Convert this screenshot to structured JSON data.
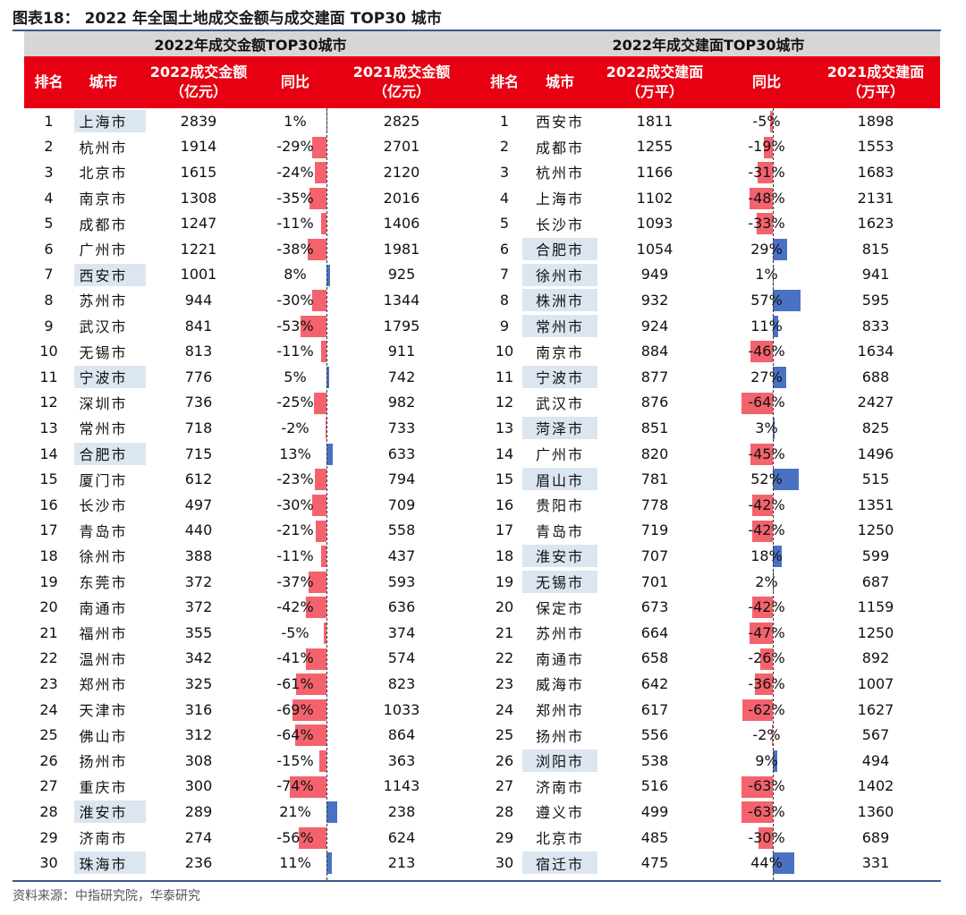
{
  "title": "图表18：  2022 年全国土地成交金额与成交建面 TOP30 城市",
  "left_header": "2022年成交金额TOP30城市",
  "right_header": "2022年成交建面TOP30城市",
  "left_columns": [
    "排名",
    "城市",
    "2022成交金额\n（亿元）",
    "同比",
    "2021成交金额\n（亿元）"
  ],
  "right_columns": [
    "排名",
    "城市",
    "2022成交建面\n（万平）",
    "同比",
    "2021成交建面\n（万平）"
  ],
  "source": "资料来源：中指研究院，华泰研究",
  "colors": {
    "header_red": "#e60012",
    "neg_bar": "#f4636d",
    "pos_bar": "#4a72c4",
    "city_highlight": "#dce6f1",
    "group_header_gray": "#d6d6d6"
  },
  "left_table": [
    {
      "rank": "1",
      "city": "上海市",
      "v2022": "2839",
      "yoy": "1%",
      "yoy_value": 1,
      "v2021": "2825",
      "highlight": true
    },
    {
      "rank": "2",
      "city": "杭州市",
      "v2022": "1914",
      "yoy": "-29%",
      "yoy_value": -29,
      "v2021": "2701",
      "highlight": false
    },
    {
      "rank": "3",
      "city": "北京市",
      "v2022": "1615",
      "yoy": "-24%",
      "yoy_value": -24,
      "v2021": "2120",
      "highlight": false
    },
    {
      "rank": "4",
      "city": "南京市",
      "v2022": "1308",
      "yoy": "-35%",
      "yoy_value": -35,
      "v2021": "2016",
      "highlight": false
    },
    {
      "rank": "5",
      "city": "成都市",
      "v2022": "1247",
      "yoy": "-11%",
      "yoy_value": -11,
      "v2021": "1406",
      "highlight": false
    },
    {
      "rank": "6",
      "city": "广州市",
      "v2022": "1221",
      "yoy": "-38%",
      "yoy_value": -38,
      "v2021": "1981",
      "highlight": false
    },
    {
      "rank": "7",
      "city": "西安市",
      "v2022": "1001",
      "yoy": "8%",
      "yoy_value": 8,
      "v2021": "925",
      "highlight": true
    },
    {
      "rank": "8",
      "city": "苏州市",
      "v2022": "944",
      "yoy": "-30%",
      "yoy_value": -30,
      "v2021": "1344",
      "highlight": false
    },
    {
      "rank": "9",
      "city": "武汉市",
      "v2022": "841",
      "yoy": "-53%",
      "yoy_value": -53,
      "v2021": "1795",
      "highlight": false
    },
    {
      "rank": "10",
      "city": "无锡市",
      "v2022": "813",
      "yoy": "-11%",
      "yoy_value": -11,
      "v2021": "911",
      "highlight": false
    },
    {
      "rank": "11",
      "city": "宁波市",
      "v2022": "776",
      "yoy": "5%",
      "yoy_value": 5,
      "v2021": "742",
      "highlight": true
    },
    {
      "rank": "12",
      "city": "深圳市",
      "v2022": "736",
      "yoy": "-25%",
      "yoy_value": -25,
      "v2021": "982",
      "highlight": false
    },
    {
      "rank": "13",
      "city": "常州市",
      "v2022": "718",
      "yoy": "-2%",
      "yoy_value": -2,
      "v2021": "733",
      "highlight": false
    },
    {
      "rank": "14",
      "city": "合肥市",
      "v2022": "715",
      "yoy": "13%",
      "yoy_value": 13,
      "v2021": "633",
      "highlight": true
    },
    {
      "rank": "15",
      "city": "厦门市",
      "v2022": "612",
      "yoy": "-23%",
      "yoy_value": -23,
      "v2021": "794",
      "highlight": false
    },
    {
      "rank": "16",
      "city": "长沙市",
      "v2022": "497",
      "yoy": "-30%",
      "yoy_value": -30,
      "v2021": "709",
      "highlight": false
    },
    {
      "rank": "17",
      "city": "青岛市",
      "v2022": "440",
      "yoy": "-21%",
      "yoy_value": -21,
      "v2021": "558",
      "highlight": false
    },
    {
      "rank": "18",
      "city": "徐州市",
      "v2022": "388",
      "yoy": "-11%",
      "yoy_value": -11,
      "v2021": "437",
      "highlight": false
    },
    {
      "rank": "19",
      "city": "东莞市",
      "v2022": "372",
      "yoy": "-37%",
      "yoy_value": -37,
      "v2021": "593",
      "highlight": false
    },
    {
      "rank": "20",
      "city": "南通市",
      "v2022": "372",
      "yoy": "-42%",
      "yoy_value": -42,
      "v2021": "636",
      "highlight": false
    },
    {
      "rank": "21",
      "city": "福州市",
      "v2022": "355",
      "yoy": "-5%",
      "yoy_value": -5,
      "v2021": "374",
      "highlight": false
    },
    {
      "rank": "22",
      "city": "温州市",
      "v2022": "342",
      "yoy": "-41%",
      "yoy_value": -41,
      "v2021": "574",
      "highlight": false
    },
    {
      "rank": "23",
      "city": "郑州市",
      "v2022": "325",
      "yoy": "-61%",
      "yoy_value": -61,
      "v2021": "823",
      "highlight": false
    },
    {
      "rank": "24",
      "city": "天津市",
      "v2022": "316",
      "yoy": "-69%",
      "yoy_value": -69,
      "v2021": "1033",
      "highlight": false
    },
    {
      "rank": "25",
      "city": "佛山市",
      "v2022": "312",
      "yoy": "-64%",
      "yoy_value": -64,
      "v2021": "864",
      "highlight": false
    },
    {
      "rank": "26",
      "city": "扬州市",
      "v2022": "308",
      "yoy": "-15%",
      "yoy_value": -15,
      "v2021": "363",
      "highlight": false
    },
    {
      "rank": "27",
      "city": "重庆市",
      "v2022": "300",
      "yoy": "-74%",
      "yoy_value": -74,
      "v2021": "1143",
      "highlight": false
    },
    {
      "rank": "28",
      "city": "淮安市",
      "v2022": "289",
      "yoy": "21%",
      "yoy_value": 21,
      "v2021": "238",
      "highlight": true
    },
    {
      "rank": "29",
      "city": "济南市",
      "v2022": "274",
      "yoy": "-56%",
      "yoy_value": -56,
      "v2021": "624",
      "highlight": false
    },
    {
      "rank": "30",
      "city": "珠海市",
      "v2022": "236",
      "yoy": "11%",
      "yoy_value": 11,
      "v2021": "213",
      "highlight": true
    }
  ],
  "right_table": [
    {
      "rank": "1",
      "city": "西安市",
      "v2022": "1811",
      "yoy": "-5%",
      "yoy_value": -5,
      "v2021": "1898",
      "highlight": false
    },
    {
      "rank": "2",
      "city": "成都市",
      "v2022": "1255",
      "yoy": "-19%",
      "yoy_value": -19,
      "v2021": "1553",
      "highlight": false
    },
    {
      "rank": "3",
      "city": "杭州市",
      "v2022": "1166",
      "yoy": "-31%",
      "yoy_value": -31,
      "v2021": "1683",
      "highlight": false
    },
    {
      "rank": "4",
      "city": "上海市",
      "v2022": "1102",
      "yoy": "-48%",
      "yoy_value": -48,
      "v2021": "2131",
      "highlight": false
    },
    {
      "rank": "5",
      "city": "长沙市",
      "v2022": "1093",
      "yoy": "-33%",
      "yoy_value": -33,
      "v2021": "1623",
      "highlight": false
    },
    {
      "rank": "6",
      "city": "合肥市",
      "v2022": "1054",
      "yoy": "29%",
      "yoy_value": 29,
      "v2021": "815",
      "highlight": true
    },
    {
      "rank": "7",
      "city": "徐州市",
      "v2022": "949",
      "yoy": "1%",
      "yoy_value": 1,
      "v2021": "941",
      "highlight": true
    },
    {
      "rank": "8",
      "city": "株洲市",
      "v2022": "932",
      "yoy": "57%",
      "yoy_value": 57,
      "v2021": "595",
      "highlight": true
    },
    {
      "rank": "9",
      "city": "常州市",
      "v2022": "924",
      "yoy": "11%",
      "yoy_value": 11,
      "v2021": "833",
      "highlight": true
    },
    {
      "rank": "10",
      "city": "南京市",
      "v2022": "884",
      "yoy": "-46%",
      "yoy_value": -46,
      "v2021": "1634",
      "highlight": false
    },
    {
      "rank": "11",
      "city": "宁波市",
      "v2022": "877",
      "yoy": "27%",
      "yoy_value": 27,
      "v2021": "688",
      "highlight": true
    },
    {
      "rank": "12",
      "city": "武汉市",
      "v2022": "876",
      "yoy": "-64%",
      "yoy_value": -64,
      "v2021": "2427",
      "highlight": false
    },
    {
      "rank": "13",
      "city": "菏泽市",
      "v2022": "851",
      "yoy": "3%",
      "yoy_value": 3,
      "v2021": "825",
      "highlight": true
    },
    {
      "rank": "14",
      "city": "广州市",
      "v2022": "820",
      "yoy": "-45%",
      "yoy_value": -45,
      "v2021": "1496",
      "highlight": false
    },
    {
      "rank": "15",
      "city": "眉山市",
      "v2022": "781",
      "yoy": "52%",
      "yoy_value": 52,
      "v2021": "515",
      "highlight": true
    },
    {
      "rank": "16",
      "city": "贵阳市",
      "v2022": "778",
      "yoy": "-42%",
      "yoy_value": -42,
      "v2021": "1351",
      "highlight": false
    },
    {
      "rank": "17",
      "city": "青岛市",
      "v2022": "719",
      "yoy": "-42%",
      "yoy_value": -42,
      "v2021": "1250",
      "highlight": false
    },
    {
      "rank": "18",
      "city": "淮安市",
      "v2022": "707",
      "yoy": "18%",
      "yoy_value": 18,
      "v2021": "599",
      "highlight": true
    },
    {
      "rank": "19",
      "city": "无锡市",
      "v2022": "701",
      "yoy": "2%",
      "yoy_value": 2,
      "v2021": "687",
      "highlight": true
    },
    {
      "rank": "20",
      "city": "保定市",
      "v2022": "673",
      "yoy": "-42%",
      "yoy_value": -42,
      "v2021": "1159",
      "highlight": false
    },
    {
      "rank": "21",
      "city": "苏州市",
      "v2022": "664",
      "yoy": "-47%",
      "yoy_value": -47,
      "v2021": "1250",
      "highlight": false
    },
    {
      "rank": "22",
      "city": "南通市",
      "v2022": "658",
      "yoy": "-26%",
      "yoy_value": -26,
      "v2021": "892",
      "highlight": false
    },
    {
      "rank": "23",
      "city": "威海市",
      "v2022": "642",
      "yoy": "-36%",
      "yoy_value": -36,
      "v2021": "1007",
      "highlight": false
    },
    {
      "rank": "24",
      "city": "郑州市",
      "v2022": "617",
      "yoy": "-62%",
      "yoy_value": -62,
      "v2021": "1627",
      "highlight": false
    },
    {
      "rank": "25",
      "city": "扬州市",
      "v2022": "556",
      "yoy": "-2%",
      "yoy_value": -2,
      "v2021": "567",
      "highlight": false
    },
    {
      "rank": "26",
      "city": "浏阳市",
      "v2022": "538",
      "yoy": "9%",
      "yoy_value": 9,
      "v2021": "494",
      "highlight": true
    },
    {
      "rank": "27",
      "city": "济南市",
      "v2022": "516",
      "yoy": "-63%",
      "yoy_value": -63,
      "v2021": "1402",
      "highlight": false
    },
    {
      "rank": "28",
      "city": "遵义市",
      "v2022": "499",
      "yoy": "-63%",
      "yoy_value": -63,
      "v2021": "1360",
      "highlight": false
    },
    {
      "rank": "29",
      "city": "北京市",
      "v2022": "485",
      "yoy": "-30%",
      "yoy_value": -30,
      "v2021": "689",
      "highlight": false
    },
    {
      "rank": "30",
      "city": "宿迁市",
      "v2022": "475",
      "yoy": "44%",
      "yoy_value": 44,
      "v2021": "331",
      "highlight": true
    }
  ]
}
